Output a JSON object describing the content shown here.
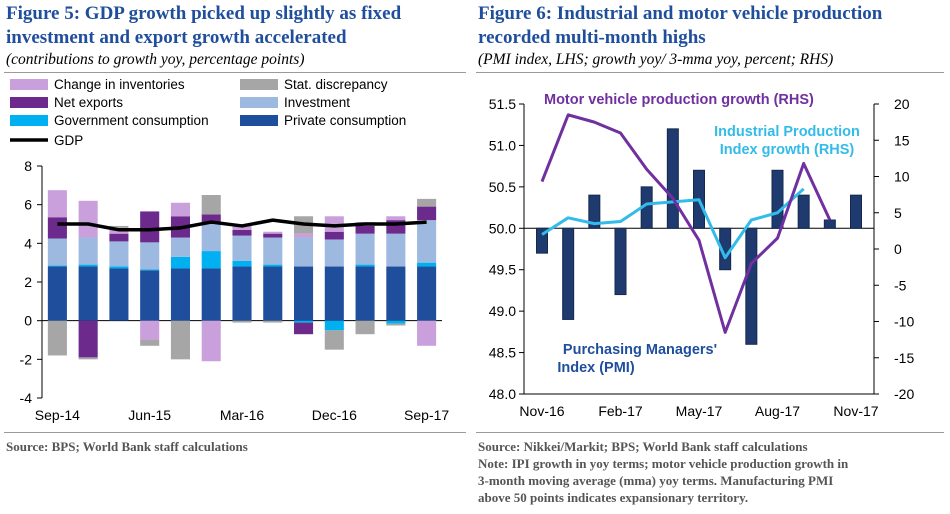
{
  "left": {
    "title_line1": "Figure 5: GDP growth picked up slightly as fixed",
    "title_line2": "investment and export growth accelerated",
    "subtitle": "(contributions to growth yoy, percentage points)",
    "source": "Source: BPS; World Bank staff calculations"
  },
  "right": {
    "title_line1": "Figure 6: Industrial and motor vehicle production",
    "title_line2": "recorded multi-month highs",
    "subtitle": "(PMI index, LHS; growth yoy/ 3-mma yoy, percent; RHS)",
    "source_line1": "Source: Nikkei/Markit; BPS; World Bank staff calculations",
    "source_line2": "Note: IPI growth in yoy terms; motor vehicle production growth in",
    "source_line3": "3-month moving average (mma) yoy terms. Manufacturing PMI",
    "source_line4": "above 50 points indicates expansionary territory."
  },
  "colors": {
    "title": "#1F4E9C",
    "inventories": "#C9A0DC",
    "net_exports": "#6B2A8C",
    "government": "#00B0F0",
    "discrepancy": "#A6A6A6",
    "investment": "#9DB9DF",
    "private": "#1F4E9C",
    "gdp": "#000000",
    "pmi": "#1F3A6E",
    "ipi": "#33BBEA",
    "motor": "#7030A0"
  },
  "chart_data": [
    {
      "type": "bar",
      "stacked": true,
      "categories": [
        "Sep-14",
        "Dec-14",
        "Mar-15",
        "Jun-15",
        "Sep-15",
        "Dec-15",
        "Mar-16",
        "Jun-16",
        "Sep-16",
        "Dec-16",
        "Mar-17",
        "Jun-17",
        "Sep-17"
      ],
      "x_tick_labels": [
        "Sep-14",
        "Jun-15",
        "Mar-16",
        "Dec-16",
        "Sep-17"
      ],
      "ylim": [
        -4,
        8
      ],
      "y_ticks": [
        -4,
        -2,
        0,
        2,
        4,
        6,
        8
      ],
      "series": [
        {
          "name": "Private consumption",
          "key": "private",
          "values": [
            2.8,
            2.8,
            2.7,
            2.6,
            2.7,
            2.7,
            2.8,
            2.8,
            2.8,
            2.8,
            2.8,
            2.8,
            2.8
          ]
        },
        {
          "name": "Government consumption",
          "key": "government",
          "values": [
            0.05,
            0.1,
            0.1,
            0.05,
            0.6,
            0.9,
            0.3,
            0.1,
            -0.1,
            -0.5,
            0.1,
            -0.15,
            0.2
          ]
        },
        {
          "name": "Investment",
          "key": "investment",
          "values": [
            1.4,
            1.4,
            1.3,
            1.4,
            1.0,
            1.4,
            1.3,
            1.4,
            1.5,
            1.4,
            1.6,
            1.7,
            2.2
          ]
        },
        {
          "name": "Net exports",
          "key": "net_exports",
          "values": [
            1.1,
            -1.9,
            0.4,
            1.6,
            1.1,
            0.5,
            0.3,
            0.2,
            -0.6,
            0.4,
            0.4,
            0.7,
            0.7
          ]
        },
        {
          "name": "Change in inventories",
          "key": "inventories",
          "values": [
            1.4,
            1.9,
            0.3,
            -1.0,
            0.7,
            -2.1,
            0.3,
            0.1,
            0.2,
            0.8,
            0.2,
            0.2,
            -1.3
          ]
        },
        {
          "name": "Stat. discrepancy",
          "key": "discrepancy",
          "values": [
            -1.8,
            -0.1,
            0.1,
            -0.3,
            -2.0,
            1.0,
            -0.1,
            -0.1,
            0.9,
            -1.0,
            -0.7,
            -0.1,
            0.4
          ]
        }
      ],
      "line": {
        "name": "GDP",
        "key": "gdp",
        "values": [
          5.0,
          5.0,
          4.7,
          4.7,
          4.8,
          5.1,
          4.9,
          5.2,
          5.0,
          4.9,
          5.0,
          5.0,
          5.1
        ]
      }
    },
    {
      "type": "bar",
      "categories": [
        "Nov-16",
        "Dec-16",
        "Jan-17",
        "Feb-17",
        "Mar-17",
        "Apr-17",
        "May-17",
        "Jun-17",
        "Jul-17",
        "Aug-17",
        "Sep-17",
        "Oct-17",
        "Nov-17"
      ],
      "x_tick_labels": [
        "Nov-16",
        "Feb-17",
        "May-17",
        "Aug-17",
        "Nov-17"
      ],
      "y_left": {
        "lim": [
          48.0,
          51.5
        ],
        "ticks": [
          48.0,
          48.5,
          49.0,
          49.5,
          50.0,
          50.5,
          51.0,
          51.5
        ]
      },
      "y_right": {
        "lim": [
          -20,
          20
        ],
        "ticks": [
          -20,
          -15,
          -10,
          -5,
          0,
          5,
          10,
          15,
          20
        ]
      },
      "series": [
        {
          "name": "Purchasing Managers' Index (PMI)",
          "key": "pmi",
          "axis": "left",
          "type": "bar",
          "values": [
            49.7,
            48.9,
            50.4,
            49.2,
            50.5,
            51.2,
            50.7,
            49.5,
            48.6,
            50.7,
            50.4,
            50.1,
            50.4
          ]
        },
        {
          "name": "Industrial Production Index growth (RHS)",
          "key": "ipi",
          "axis": "right",
          "type": "line",
          "values": [
            2.0,
            4.3,
            3.5,
            3.8,
            6.2,
            6.5,
            6.8,
            -1.2,
            4.0,
            5.0,
            8.3,
            null,
            null
          ]
        },
        {
          "name": "Motor vehicle production growth (RHS)",
          "key": "motor",
          "axis": "right",
          "type": "line",
          "values": [
            9.3,
            18.5,
            17.5,
            16.0,
            11.0,
            7.0,
            1.2,
            -11.5,
            -2.0,
            1.5,
            11.8,
            4.0,
            null
          ]
        }
      ],
      "annotations": [
        "Motor vehicle production growth (RHS)",
        "Industrial Production",
        "Index growth (RHS)",
        "Purchasing Managers'",
        "Index (PMI)"
      ]
    }
  ]
}
